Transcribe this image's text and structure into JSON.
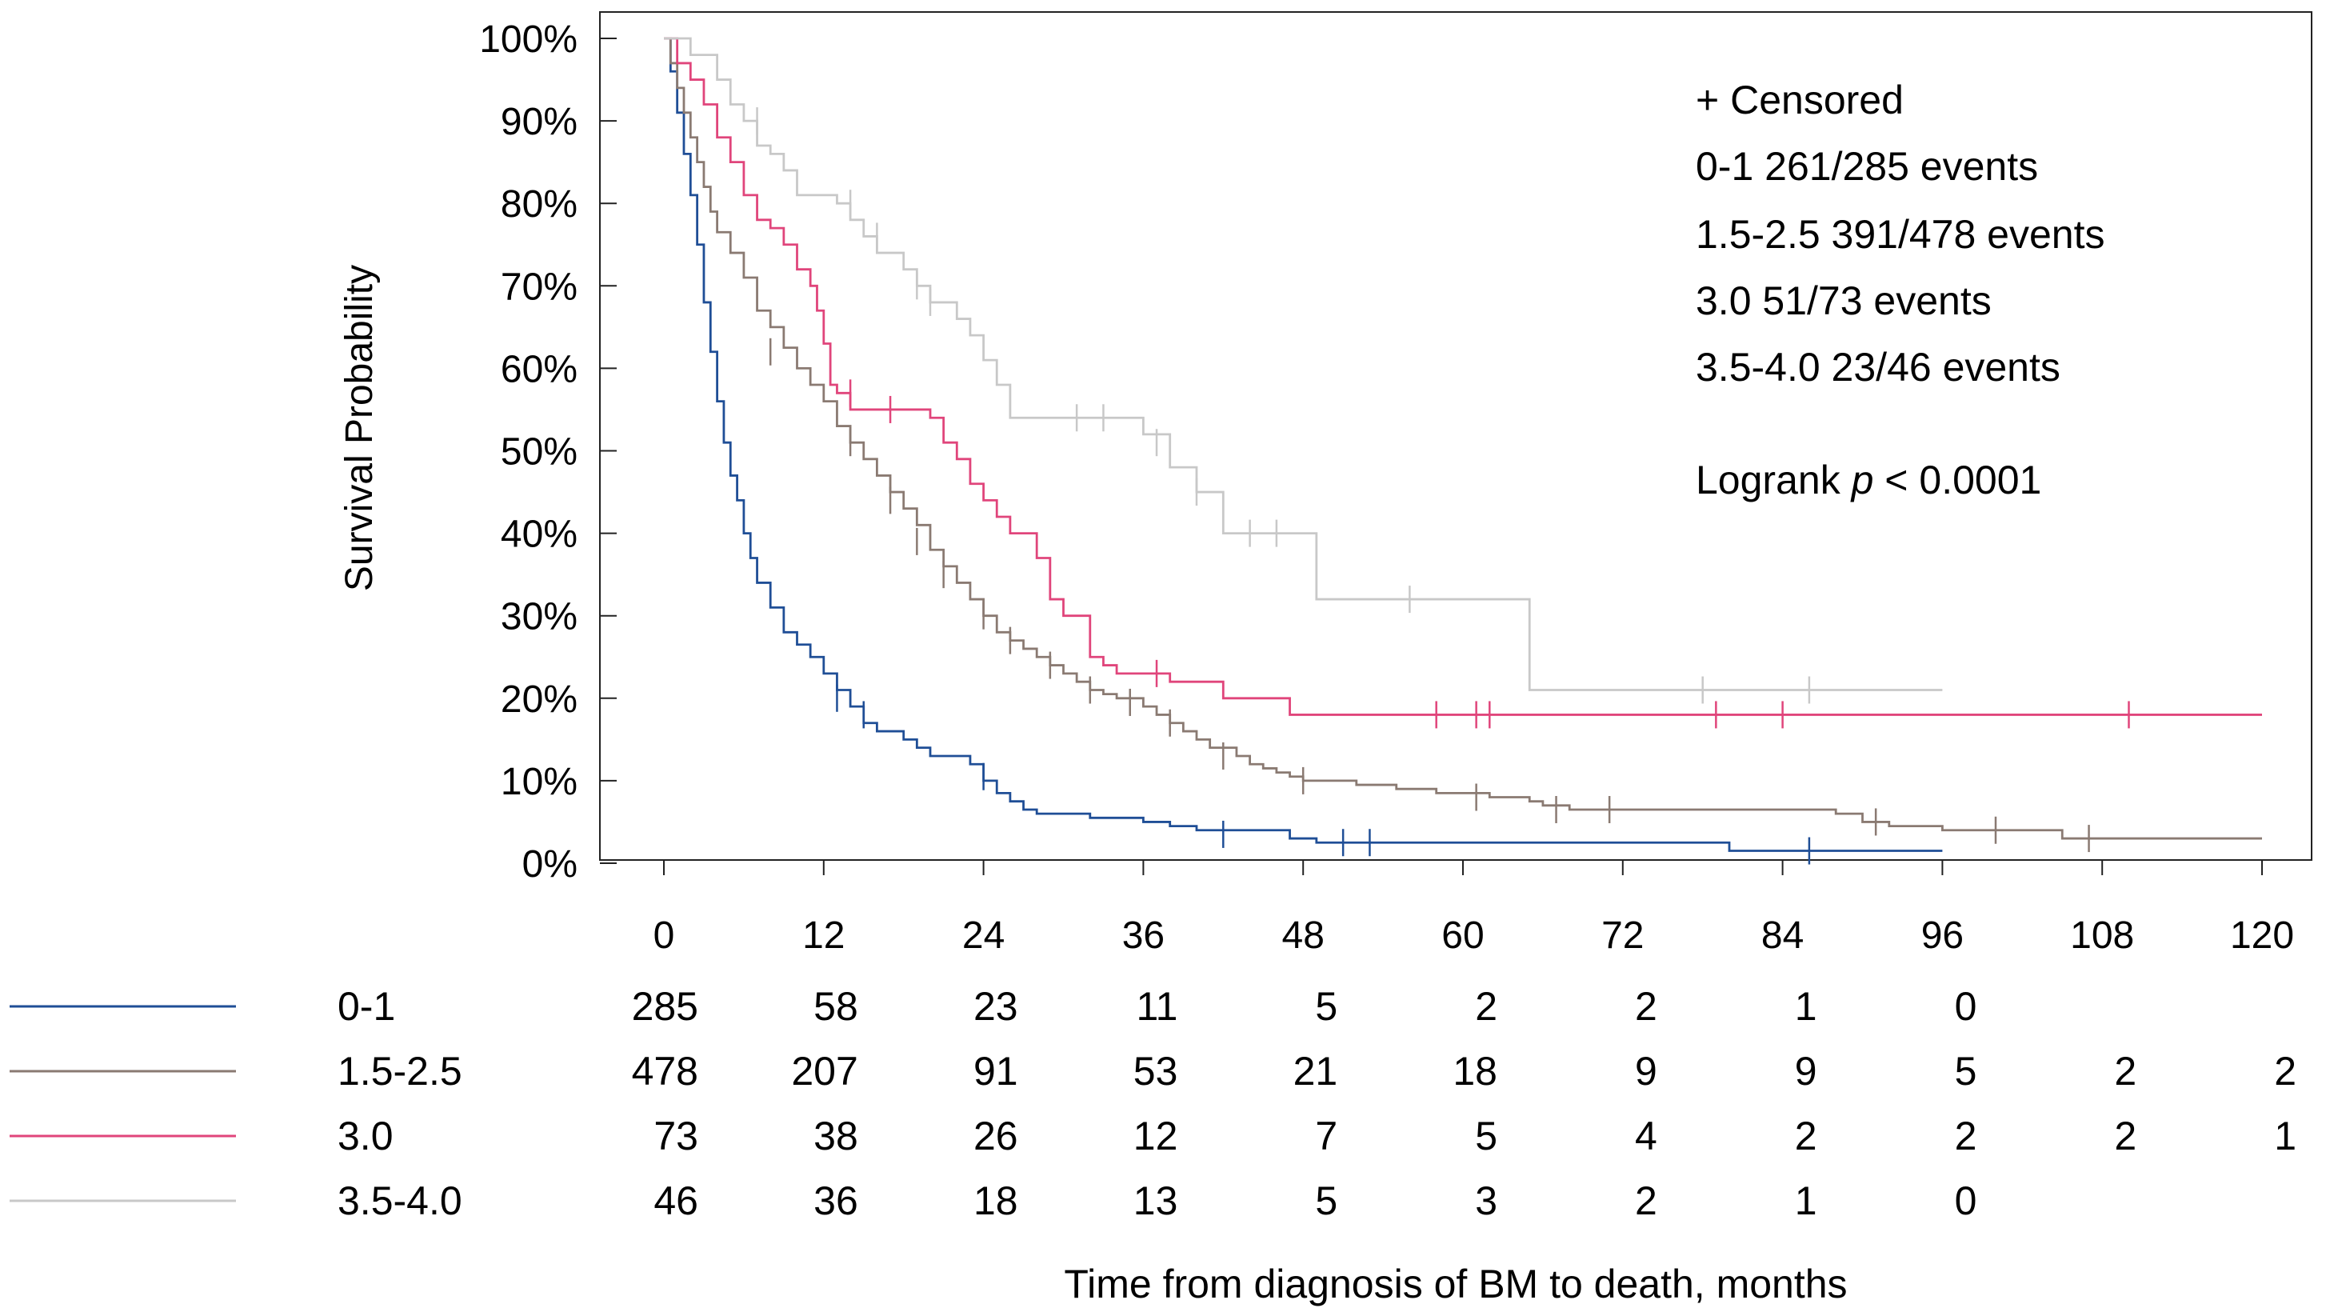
{
  "chart_data": {
    "type": "line",
    "subtype": "kaplan-meier",
    "ylabel": "Survival Probability",
    "xlabel": "Time from diagnosis of BM to death, months",
    "xlim": [
      0,
      120
    ],
    "ylim": [
      0,
      100
    ],
    "x_ticks": [
      0,
      12,
      24,
      36,
      48,
      60,
      72,
      84,
      96,
      108,
      120
    ],
    "x_tick_labels": [
      "0",
      "12",
      "24",
      "36",
      "48",
      "60",
      "72",
      "84",
      "96",
      "108",
      "120"
    ],
    "y_ticks": [
      0,
      10,
      20,
      30,
      40,
      50,
      60,
      70,
      80,
      90,
      100
    ],
    "y_tick_labels": [
      "0%",
      "10%",
      "20%",
      "30%",
      "40%",
      "50%",
      "60%",
      "70%",
      "80%",
      "90%",
      "100%"
    ],
    "legend": {
      "location": "top-right",
      "censored_label": "+ Censored",
      "entries": [
        "0-1  261/285 events",
        "1.5-2.5  391/478 events",
        "3.0  51/73 events",
        "3.5-4.0  23/46 events"
      ],
      "logrank_prefix": "Logrank ",
      "logrank_p": "p",
      "logrank_suffix": " < 0.0001"
    },
    "series": [
      {
        "name": "0-1",
        "color": "#1f4e96",
        "steps": [
          [
            0,
            100
          ],
          [
            0.5,
            96
          ],
          [
            1,
            91
          ],
          [
            1.5,
            86
          ],
          [
            2,
            81
          ],
          [
            2.5,
            75
          ],
          [
            3,
            68
          ],
          [
            3.5,
            62
          ],
          [
            4,
            56
          ],
          [
            4.5,
            51
          ],
          [
            5,
            47
          ],
          [
            5.5,
            44
          ],
          [
            6,
            40
          ],
          [
            6.5,
            37
          ],
          [
            7,
            34
          ],
          [
            8,
            31
          ],
          [
            9,
            28
          ],
          [
            10,
            26.5
          ],
          [
            11,
            25
          ],
          [
            12,
            23
          ],
          [
            13,
            21
          ],
          [
            14,
            19
          ],
          [
            15,
            17
          ],
          [
            16,
            16
          ],
          [
            18,
            15
          ],
          [
            19,
            14
          ],
          [
            20,
            13
          ],
          [
            23,
            12
          ],
          [
            24,
            10
          ],
          [
            25,
            8.5
          ],
          [
            26,
            7.5
          ],
          [
            27,
            6.5
          ],
          [
            28,
            6
          ],
          [
            32,
            5.5
          ],
          [
            36,
            5
          ],
          [
            38,
            4.5
          ],
          [
            40,
            4
          ],
          [
            47,
            3
          ],
          [
            49,
            2.5
          ],
          [
            80,
            1.5
          ],
          [
            96,
            1.5
          ]
        ],
        "censored": [
          [
            13,
            20
          ],
          [
            15,
            18
          ],
          [
            24,
            10.5
          ],
          [
            42,
            3.5
          ],
          [
            51,
            2.5
          ],
          [
            53,
            2.5
          ],
          [
            86,
            1.5
          ]
        ]
      },
      {
        "name": "1.5-2.5",
        "color": "#8a7a72",
        "steps": [
          [
            0,
            100
          ],
          [
            0.5,
            97
          ],
          [
            1,
            94
          ],
          [
            1.5,
            91
          ],
          [
            2,
            88
          ],
          [
            2.5,
            85
          ],
          [
            3,
            82
          ],
          [
            3.5,
            79
          ],
          [
            4,
            76.5
          ],
          [
            5,
            74
          ],
          [
            6,
            71
          ],
          [
            7,
            67
          ],
          [
            8,
            65
          ],
          [
            9,
            62.5
          ],
          [
            10,
            60
          ],
          [
            11,
            58
          ],
          [
            12,
            56
          ],
          [
            13,
            53
          ],
          [
            14,
            51
          ],
          [
            15,
            49
          ],
          [
            16,
            47
          ],
          [
            17,
            45
          ],
          [
            18,
            43
          ],
          [
            19,
            41
          ],
          [
            20,
            38
          ],
          [
            21,
            36
          ],
          [
            22,
            34
          ],
          [
            23,
            32
          ],
          [
            24,
            30
          ],
          [
            25,
            28
          ],
          [
            26,
            27
          ],
          [
            27,
            26
          ],
          [
            28,
            25
          ],
          [
            29,
            24
          ],
          [
            30,
            23
          ],
          [
            31,
            22
          ],
          [
            32,
            21
          ],
          [
            33,
            20.5
          ],
          [
            34,
            20
          ],
          [
            36,
            19
          ],
          [
            37,
            18
          ],
          [
            38,
            17
          ],
          [
            39,
            16
          ],
          [
            40,
            15
          ],
          [
            41,
            14
          ],
          [
            43,
            13
          ],
          [
            44,
            12
          ],
          [
            45,
            11.5
          ],
          [
            46,
            11
          ],
          [
            47,
            10.5
          ],
          [
            48,
            10
          ],
          [
            52,
            9.5
          ],
          [
            55,
            9
          ],
          [
            58,
            8.5
          ],
          [
            62,
            8
          ],
          [
            65,
            7.5
          ],
          [
            66,
            7
          ],
          [
            68,
            6.5
          ],
          [
            88,
            6
          ],
          [
            90,
            5
          ],
          [
            92,
            4.5
          ],
          [
            96,
            4
          ],
          [
            105,
            3
          ],
          [
            120,
            3
          ]
        ],
        "censored": [
          [
            8,
            62
          ],
          [
            14,
            51
          ],
          [
            17,
            44
          ],
          [
            19,
            39
          ],
          [
            21,
            35
          ],
          [
            24,
            30
          ],
          [
            26,
            27
          ],
          [
            29,
            24
          ],
          [
            32,
            21
          ],
          [
            35,
            19.5
          ],
          [
            38,
            17
          ],
          [
            42,
            13
          ],
          [
            48,
            10
          ],
          [
            61,
            8
          ],
          [
            67,
            6.5
          ],
          [
            71,
            6.5
          ],
          [
            91,
            5
          ],
          [
            100,
            4
          ],
          [
            107,
            3
          ]
        ]
      },
      {
        "name": "3.0",
        "color": "#e0457b",
        "steps": [
          [
            0,
            100
          ],
          [
            1,
            97
          ],
          [
            2,
            95
          ],
          [
            3,
            92
          ],
          [
            4,
            88
          ],
          [
            5,
            85
          ],
          [
            6,
            81
          ],
          [
            7,
            78
          ],
          [
            8,
            77
          ],
          [
            9,
            75
          ],
          [
            10,
            72
          ],
          [
            11,
            70
          ],
          [
            11.5,
            67
          ],
          [
            12,
            63
          ],
          [
            12.5,
            58
          ],
          [
            13,
            57
          ],
          [
            14,
            55
          ],
          [
            20,
            54
          ],
          [
            21,
            51
          ],
          [
            22,
            49
          ],
          [
            23,
            46
          ],
          [
            24,
            44
          ],
          [
            25,
            42
          ],
          [
            26,
            40
          ],
          [
            28,
            37
          ],
          [
            29,
            32
          ],
          [
            30,
            30
          ],
          [
            32,
            25
          ],
          [
            33,
            24
          ],
          [
            34,
            23
          ],
          [
            38,
            22
          ],
          [
            42,
            20
          ],
          [
            47,
            18
          ],
          [
            120,
            18
          ]
        ],
        "censored": [
          [
            14,
            57
          ],
          [
            17,
            55
          ],
          [
            37,
            23
          ],
          [
            58,
            18
          ],
          [
            61,
            18
          ],
          [
            62,
            18
          ],
          [
            79,
            18
          ],
          [
            84,
            18
          ],
          [
            110,
            18
          ]
        ]
      },
      {
        "name": "3.5-4.0",
        "color": "#c8c8c8",
        "steps": [
          [
            0,
            100
          ],
          [
            2,
            98
          ],
          [
            4,
            95
          ],
          [
            5,
            92
          ],
          [
            6,
            90
          ],
          [
            7,
            87
          ],
          [
            8,
            86
          ],
          [
            9,
            84
          ],
          [
            10,
            81
          ],
          [
            13,
            80
          ],
          [
            14,
            78
          ],
          [
            15,
            76
          ],
          [
            16,
            74
          ],
          [
            18,
            72
          ],
          [
            19,
            70
          ],
          [
            20,
            68
          ],
          [
            22,
            66
          ],
          [
            23,
            64
          ],
          [
            24,
            61
          ],
          [
            25,
            58
          ],
          [
            26,
            54
          ],
          [
            36,
            52
          ],
          [
            38,
            48
          ],
          [
            40,
            45
          ],
          [
            42,
            40
          ],
          [
            49,
            32
          ],
          [
            65,
            21
          ],
          [
            96,
            21
          ]
        ],
        "censored": [
          [
            7,
            90
          ],
          [
            14,
            80
          ],
          [
            16,
            76
          ],
          [
            19,
            70
          ],
          [
            20,
            68
          ],
          [
            31,
            54
          ],
          [
            33,
            54
          ],
          [
            37,
            51
          ],
          [
            40,
            45
          ],
          [
            44,
            40
          ],
          [
            46,
            40
          ],
          [
            56,
            32
          ],
          [
            78,
            21
          ],
          [
            86,
            21
          ]
        ]
      }
    ],
    "risk_table": {
      "times": [
        0,
        12,
        24,
        36,
        48,
        60,
        72,
        84,
        96,
        108,
        120
      ],
      "rows": [
        {
          "label": "0-1",
          "color": "#1f4e96",
          "counts": [
            285,
            58,
            23,
            11,
            5,
            2,
            2,
            1,
            0
          ]
        },
        {
          "label": "1.5-2.5",
          "color": "#8a7a72",
          "counts": [
            478,
            207,
            91,
            53,
            21,
            18,
            9,
            9,
            5,
            2,
            2
          ]
        },
        {
          "label": "3.0",
          "color": "#e0457b",
          "counts": [
            73,
            38,
            26,
            12,
            7,
            5,
            4,
            2,
            2,
            2,
            1
          ]
        },
        {
          "label": "3.5-4.0",
          "color": "#c8c8c8",
          "counts": [
            46,
            36,
            18,
            13,
            5,
            3,
            2,
            1,
            0
          ]
        }
      ]
    }
  }
}
